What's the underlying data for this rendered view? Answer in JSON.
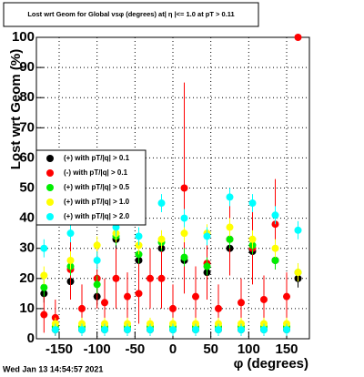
{
  "chart_data": {
    "type": "scatter",
    "title": "Lost wrt Geom for Global vsφ (degrees) at| η |<= 1.0 at pT > 0.11",
    "x_label": "φ (degrees)",
    "y_label": "Lost wrt Geom (%)",
    "footer": "Wed Jan 13 14:54:57 2021",
    "x": [
      -170,
      -155,
      -135,
      -120,
      -100,
      -90,
      -75,
      -60,
      -45,
      -30,
      -15,
      0,
      15,
      30,
      45,
      60,
      75,
      90,
      105,
      120,
      135,
      150,
      165
    ],
    "series": [
      {
        "name": "(+) with pT/|q| > 0.1",
        "color": "#000000",
        "values": [
          15,
          3,
          19,
          3,
          14,
          3,
          33,
          3,
          26,
          3,
          30,
          3,
          26,
          3,
          22,
          3,
          30,
          3,
          29,
          3,
          26,
          3,
          20
        ],
        "errors": [
          3,
          2,
          3,
          2,
          3,
          2,
          3,
          2,
          3,
          2,
          3,
          2,
          3,
          2,
          3,
          2,
          3,
          2,
          3,
          2,
          3,
          2,
          3
        ]
      },
      {
        "name": "(-) with pT/|q| > 0.1",
        "color": "#ff0000",
        "values": [
          8,
          7,
          23,
          10,
          20,
          12,
          20,
          14,
          15,
          20,
          20,
          10,
          50,
          14,
          25,
          10,
          33,
          12,
          30,
          13,
          38,
          14,
          100
        ],
        "errors": [
          6,
          6,
          10,
          8,
          10,
          8,
          10,
          8,
          10,
          10,
          10,
          8,
          35,
          10,
          12,
          8,
          12,
          8,
          12,
          8,
          15,
          8,
          0
        ]
      },
      {
        "name": "(+) with pT/|q| > 0.5",
        "color": "#00ee00",
        "values": [
          17,
          4,
          24,
          4,
          18,
          4,
          34,
          4,
          28,
          4,
          32,
          4,
          27,
          4,
          24,
          4,
          33,
          4,
          31,
          4,
          26,
          4,
          22
        ],
        "errors": [
          3,
          2,
          3,
          2,
          3,
          2,
          3,
          2,
          3,
          2,
          3,
          2,
          3,
          2,
          3,
          2,
          3,
          2,
          3,
          2,
          3,
          2,
          3
        ]
      },
      {
        "name": "(+) with pT/|q| > 1.0",
        "color": "#ffff00",
        "values": [
          21,
          5,
          26,
          5,
          31,
          5,
          35,
          5,
          31,
          5,
          33,
          5,
          35,
          5,
          35,
          5,
          37,
          5,
          33,
          5,
          30,
          5,
          22
        ],
        "errors": [
          3,
          2,
          3,
          2,
          3,
          2,
          3,
          2,
          3,
          2,
          3,
          2,
          3,
          2,
          3,
          2,
          3,
          2,
          3,
          2,
          3,
          2,
          3
        ]
      },
      {
        "name": "(+) with pT/|q| > 2.0",
        "color": "#00ffff",
        "values": [
          30,
          3,
          35,
          3,
          26,
          3,
          37,
          3,
          34,
          3,
          45,
          3,
          40,
          3,
          34,
          3,
          47,
          3,
          45,
          3,
          41,
          3,
          36
        ],
        "errors": [
          3,
          2,
          3,
          2,
          3,
          2,
          3,
          2,
          3,
          2,
          3,
          2,
          3,
          2,
          3,
          2,
          3,
          2,
          3,
          2,
          3,
          2,
          3
        ]
      }
    ],
    "xlim": [
      -180,
      180
    ],
    "ylim": [
      0,
      100
    ],
    "xticks": [
      -150,
      -100,
      -50,
      0,
      50,
      100,
      150
    ],
    "yticks": [
      0,
      10,
      20,
      30,
      40,
      50,
      60,
      70,
      80,
      90,
      100
    ],
    "grid": true
  }
}
